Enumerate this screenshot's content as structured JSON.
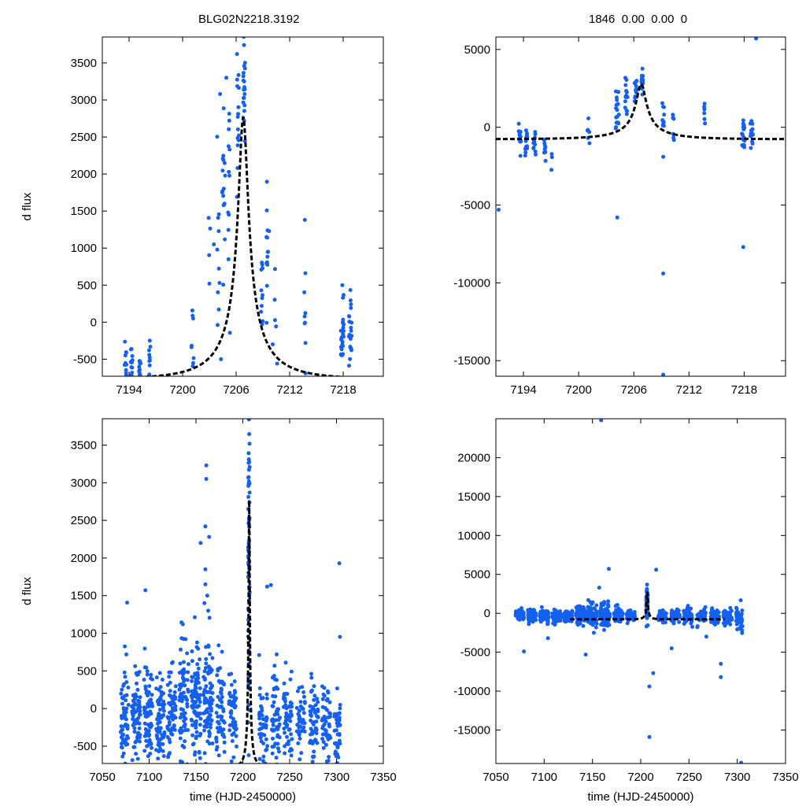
{
  "titles": {
    "left": "BLG02N2218.3192",
    "right": "1846  0.00  0.00  0"
  },
  "colors": {
    "points": "#1460f0",
    "model": "#000000",
    "frame": "#000000"
  },
  "chart_data": [
    {
      "id": "top-left",
      "type": "scatter",
      "title": "BLG02N2218.3192",
      "ylabel": "d flux",
      "xlabel": "",
      "xlim": [
        7191,
        7222.5
      ],
      "ylim": [
        -730,
        3850
      ],
      "xticks": [
        7194,
        7200,
        7206,
        7212,
        7218
      ],
      "yticks": [
        -500,
        0,
        500,
        1000,
        1500,
        2000,
        2500,
        3000,
        3500
      ],
      "model": {
        "t0": 7206.8,
        "u0": 0.083,
        "tE": 6.5,
        "amp": 3538,
        "base": -770
      },
      "clusters": [
        [
          7193.6,
          0.12,
          -640,
          150,
          14,
          11
        ],
        [
          7194.3,
          0.12,
          -620,
          160,
          12,
          12
        ],
        [
          7195.2,
          0.12,
          -580,
          150,
          12,
          13
        ],
        [
          7196.3,
          0.1,
          -540,
          140,
          10,
          14
        ],
        [
          7201.1,
          0.15,
          -100,
          300,
          8,
          15
        ],
        [
          7203.0,
          0.1,
          850,
          330,
          4,
          16
        ],
        [
          7204.0,
          0.15,
          900,
          700,
          10,
          17
        ],
        [
          7204.6,
          0.18,
          1700,
          800,
          16,
          18
        ],
        [
          7205.2,
          0.15,
          1500,
          900,
          12,
          19
        ],
        [
          7206.2,
          0.12,
          2850,
          350,
          14,
          20
        ],
        [
          7206.9,
          0.1,
          3200,
          300,
          20,
          21
        ],
        [
          7208.9,
          0.1,
          500,
          420,
          10,
          22
        ],
        [
          7209.5,
          0.1,
          850,
          380,
          14,
          23
        ],
        [
          7210.4,
          0.08,
          300,
          400,
          4,
          24
        ],
        [
          7213.7,
          0.08,
          450,
          500,
          8,
          25
        ],
        [
          7217.9,
          0.15,
          -150,
          250,
          24,
          26
        ],
        [
          7218.8,
          0.15,
          -150,
          250,
          22,
          27
        ]
      ],
      "points": [
        [
          7203.5,
          1050
        ],
        [
          7204.2,
          3080
        ],
        [
          7204.9,
          3300
        ],
        [
          7206.1,
          3620
        ],
        [
          7209.7,
          1230
        ],
        [
          7213.7,
          1380
        ],
        [
          7217.9,
          500
        ],
        [
          7208.8,
          140
        ],
        [
          7210.1,
          -300
        ],
        [
          7204.3,
          -500
        ],
        [
          7210.6,
          -560
        ]
      ]
    },
    {
      "id": "top-right",
      "type": "scatter",
      "title": "1846  0.00  0.00  0",
      "ylabel": "",
      "xlabel": "",
      "xlim": [
        7191,
        7222.5
      ],
      "ylim": [
        -16000,
        5800
      ],
      "xticks": [
        7194,
        7200,
        7206,
        7212,
        7218
      ],
      "yticks": [
        -15000,
        -10000,
        -5000,
        0,
        5000
      ],
      "model": {
        "t0": 7206.8,
        "u0": 0.083,
        "tE": 6.5,
        "amp": 3538,
        "base": -770
      },
      "clusters": [
        [
          7193.6,
          0.12,
          -800,
          500,
          14,
          31
        ],
        [
          7194.3,
          0.12,
          -900,
          500,
          12,
          32
        ],
        [
          7195.2,
          0.12,
          -1000,
          550,
          12,
          33
        ],
        [
          7196.3,
          0.1,
          -1100,
          550,
          10,
          34
        ],
        [
          7197.1,
          0.06,
          -1700,
          500,
          3,
          35
        ],
        [
          7201.1,
          0.15,
          -400,
          400,
          6,
          36
        ],
        [
          7204.2,
          0.18,
          1200,
          900,
          18,
          37
        ],
        [
          7205.2,
          0.15,
          1800,
          900,
          14,
          38
        ],
        [
          7206.2,
          0.12,
          2600,
          500,
          14,
          39
        ],
        [
          7206.9,
          0.1,
          3000,
          400,
          18,
          40
        ],
        [
          7209.2,
          0.1,
          200,
          700,
          10,
          41
        ],
        [
          7210.3,
          0.08,
          100,
          700,
          6,
          42
        ],
        [
          7213.7,
          0.08,
          600,
          500,
          6,
          43
        ],
        [
          7217.9,
          0.15,
          -300,
          500,
          20,
          44
        ],
        [
          7218.8,
          0.15,
          -500,
          500,
          18,
          45
        ]
      ],
      "points": [
        [
          7191.3,
          -5300
        ],
        [
          7204.2,
          -5800
        ],
        [
          7209.2,
          -9400
        ],
        [
          7209.2,
          -15900
        ],
        [
          7217.9,
          -7700
        ],
        [
          7209.2,
          -1900
        ],
        [
          7219.3,
          5700
        ]
      ]
    },
    {
      "id": "bottom-left",
      "type": "scatter",
      "title": "",
      "ylabel": "d flux",
      "xlabel": "time (HJD-2450000)",
      "xlim": [
        7050,
        7350
      ],
      "ylim": [
        -730,
        3850
      ],
      "xticks": [
        7050,
        7100,
        7150,
        7200,
        7250,
        7300,
        7350
      ],
      "yticks": [
        -500,
        0,
        500,
        1000,
        1500,
        2000,
        2500,
        3000,
        3500
      ],
      "model": {
        "t0": 7206.8,
        "u0": 0.083,
        "tE": 6.5,
        "amp": 3538,
        "base": -770
      },
      "clusters": [
        [
          7074,
          4.5,
          -100,
          350,
          60,
          51
        ],
        [
          7086,
          4.5,
          -100,
          350,
          70,
          52
        ],
        [
          7099,
          4.5,
          -120,
          330,
          70,
          53
        ],
        [
          7112,
          4.5,
          -120,
          320,
          70,
          54
        ],
        [
          7124,
          4.5,
          -130,
          300,
          60,
          55
        ],
        [
          7137,
          5.0,
          50,
          380,
          75,
          56
        ],
        [
          7150,
          5.0,
          100,
          400,
          90,
          57
        ],
        [
          7163,
          5.0,
          100,
          420,
          90,
          58
        ],
        [
          7176,
          4.5,
          0,
          350,
          60,
          59
        ],
        [
          7189,
          4.5,
          -100,
          300,
          50,
          60
        ],
        [
          7206.5,
          0.8,
          1900,
          1200,
          80,
          61
        ],
        [
          7222,
          4.5,
          -200,
          300,
          45,
          62
        ],
        [
          7235,
          4.5,
          -150,
          320,
          55,
          63
        ],
        [
          7248,
          4.5,
          -120,
          300,
          55,
          64
        ],
        [
          7262,
          4.5,
          -200,
          280,
          45,
          65
        ],
        [
          7276,
          4.5,
          -220,
          300,
          55,
          66
        ],
        [
          7289,
          4.5,
          -200,
          300,
          50,
          67
        ],
        [
          7301,
          3.5,
          -230,
          280,
          40,
          68
        ]
      ],
      "points": [
        [
          7161,
          3230
        ],
        [
          7161,
          3050
        ],
        [
          7160,
          2420
        ],
        [
          7155,
          2200
        ],
        [
          7164,
          2280
        ],
        [
          7096,
          1570
        ],
        [
          7160,
          1850
        ],
        [
          7160,
          1650
        ],
        [
          7226,
          1620
        ],
        [
          7230,
          1640
        ],
        [
          7303,
          1930
        ],
        [
          7162,
          1500
        ],
        [
          7136,
          1120
        ],
        [
          7159,
          1400
        ],
        [
          7163,
          1300
        ]
      ]
    },
    {
      "id": "bottom-right",
      "type": "scatter",
      "title": "",
      "ylabel": "",
      "xlabel": "time (HJD-2450000)",
      "xlim": [
        7050,
        7350
      ],
      "ylim": [
        -19300,
        25000
      ],
      "xticks": [
        7050,
        7100,
        7150,
        7200,
        7250,
        7300,
        7350
      ],
      "yticks": [
        -15000,
        -10000,
        -5000,
        0,
        5000,
        10000,
        15000,
        20000
      ],
      "model": {
        "t0": 7206.8,
        "u0": 0.083,
        "tE": 6.5,
        "amp": 3538,
        "base": -770
      },
      "clusters": [
        [
          7075,
          4.5,
          -300,
          400,
          50,
          71
        ],
        [
          7087,
          4.5,
          -300,
          400,
          60,
          72
        ],
        [
          7100,
          4.5,
          -300,
          400,
          60,
          73
        ],
        [
          7113,
          4.5,
          -300,
          400,
          60,
          74
        ],
        [
          7125,
          4.5,
          -300,
          400,
          55,
          75
        ],
        [
          7138,
          5.0,
          -250,
          700,
          80,
          76
        ],
        [
          7150,
          5.0,
          -200,
          800,
          90,
          77
        ],
        [
          7163,
          5.0,
          -250,
          800,
          90,
          78
        ],
        [
          7177,
          4.5,
          -300,
          500,
          55,
          79
        ],
        [
          7190,
          4.5,
          -400,
          400,
          45,
          80
        ],
        [
          7206.5,
          0.8,
          1500,
          1200,
          70,
          81
        ],
        [
          7222,
          4.5,
          -300,
          400,
          40,
          82
        ],
        [
          7236,
          4.5,
          -300,
          450,
          50,
          83
        ],
        [
          7249,
          4.5,
          -350,
          450,
          50,
          84
        ],
        [
          7263,
          4.5,
          -400,
          450,
          45,
          85
        ],
        [
          7277,
          4.5,
          -400,
          500,
          50,
          86
        ],
        [
          7290,
          4.5,
          -500,
          600,
          45,
          87
        ],
        [
          7302,
          3.5,
          -700,
          900,
          40,
          88
        ]
      ],
      "points": [
        [
          7159,
          24800
        ],
        [
          7304,
          -19200
        ],
        [
          7209,
          -15900
        ],
        [
          7209,
          -9400
        ],
        [
          7283,
          -8200
        ],
        [
          7283,
          -6500
        ],
        [
          7213,
          -7700
        ],
        [
          7079,
          -4900
        ],
        [
          7167,
          5700
        ],
        [
          7216,
          5600
        ],
        [
          7157,
          3300
        ],
        [
          7104,
          -3200
        ],
        [
          7268,
          -3000
        ],
        [
          7232,
          -4500
        ],
        [
          7143,
          -5300
        ]
      ]
    }
  ]
}
